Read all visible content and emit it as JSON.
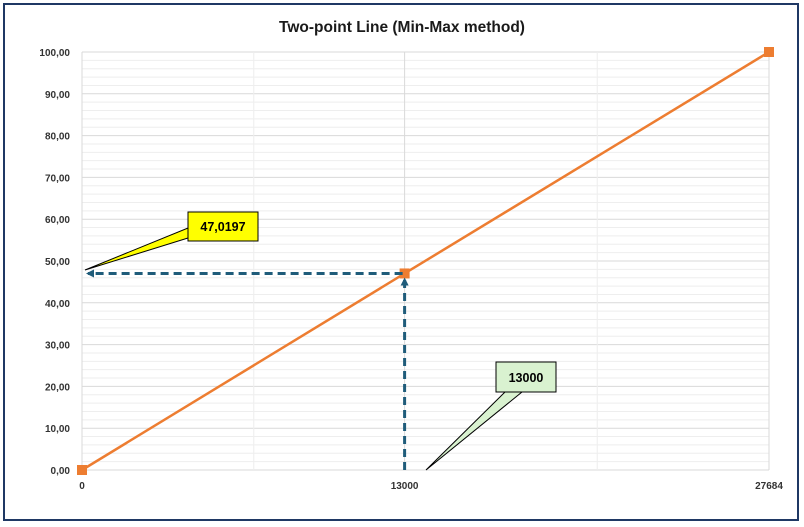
{
  "chart_data": {
    "type": "line",
    "title": "Two-point Line (Min-Max method)",
    "xlabel": "",
    "ylabel": "",
    "xlim": [
      0,
      27684
    ],
    "ylim": [
      0,
      100
    ],
    "x_ticks": [
      "0",
      "13000",
      "27684"
    ],
    "y_ticks": [
      "0,00",
      "10,00",
      "20,00",
      "30,00",
      "40,00",
      "50,00",
      "60,00",
      "70,00",
      "80,00",
      "90,00",
      "100,00"
    ],
    "grid": true,
    "legend": "none",
    "series": [
      {
        "x": [
          0,
          13000,
          27684
        ],
        "y": [
          0,
          47.0197,
          100
        ],
        "color": "#ed7d31"
      }
    ],
    "annotations": [
      {
        "text": "47,0197",
        "fill": "#ffff00",
        "target": "y-axis at 47,0197"
      },
      {
        "text": "13000",
        "fill": "#d9f2d0",
        "target": "x-axis at 13000"
      }
    ],
    "guide_color": "#1f5c7a"
  }
}
